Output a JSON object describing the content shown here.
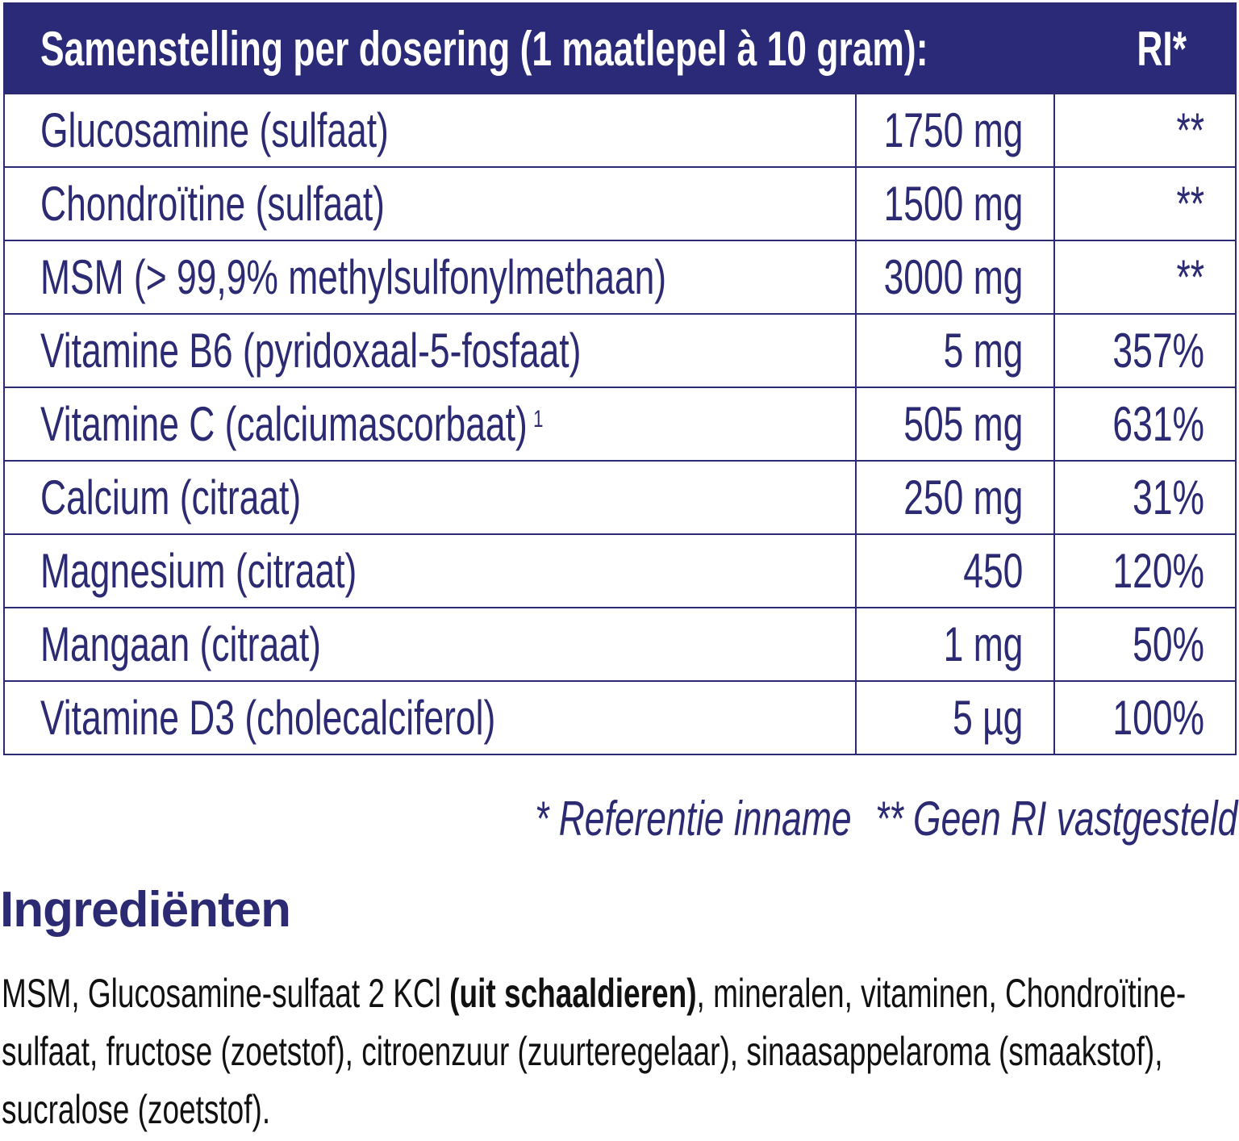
{
  "table": {
    "header": {
      "title": "Samenstelling per dosering (1 maatlepel à 10 gram):",
      "ri": "RI*"
    },
    "rows": [
      {
        "name": "Glucosamine (sulfaat)",
        "amount": "1750 mg",
        "ri": "**"
      },
      {
        "name": "Chondroïtine (sulfaat)",
        "amount": "1500 mg",
        "ri": "**"
      },
      {
        "name": "MSM (> 99,9% methylsulfonylmethaan)",
        "amount": "3000 mg",
        "ri": "**"
      },
      {
        "name": "Vitamine B6 (pyridoxaal-5-fosfaat)",
        "amount": "5 mg",
        "ri": "357%"
      },
      {
        "name": "Vitamine C (calciumascorbaat)",
        "sup": "1",
        "amount": "505 mg",
        "ri": "631%"
      },
      {
        "name": "Calcium (citraat)",
        "amount": "250 mg",
        "ri": "31%"
      },
      {
        "name": "Magnesium (citraat)",
        "amount": "450",
        "ri": "120%"
      },
      {
        "name": "Mangaan (citraat)",
        "amount": "1 mg",
        "ri": "50%"
      },
      {
        "name": "Vitamine D3 (cholecalciferol)",
        "amount": "5 µg",
        "ri": "100%"
      }
    ]
  },
  "footnotes": {
    "ri": "* Referentie inname",
    "no_ri": "** Geen RI vastgesteld"
  },
  "ingredients": {
    "heading": "Ingrediënten",
    "text_before": "MSM, Glucosamine-sulfaat 2 KCl ",
    "text_bold": "(uit schaaldieren)",
    "text_after": ", mineralen, vitaminen, Chondroïtine-sulfaat, fructose (zoetstof), citroenzuur (zuurteregelaar), sinaasappelaroma (smaakstof), sucralose (zoetstof)."
  },
  "colors": {
    "brand": "#2a2a78",
    "body_text": "#111111"
  }
}
